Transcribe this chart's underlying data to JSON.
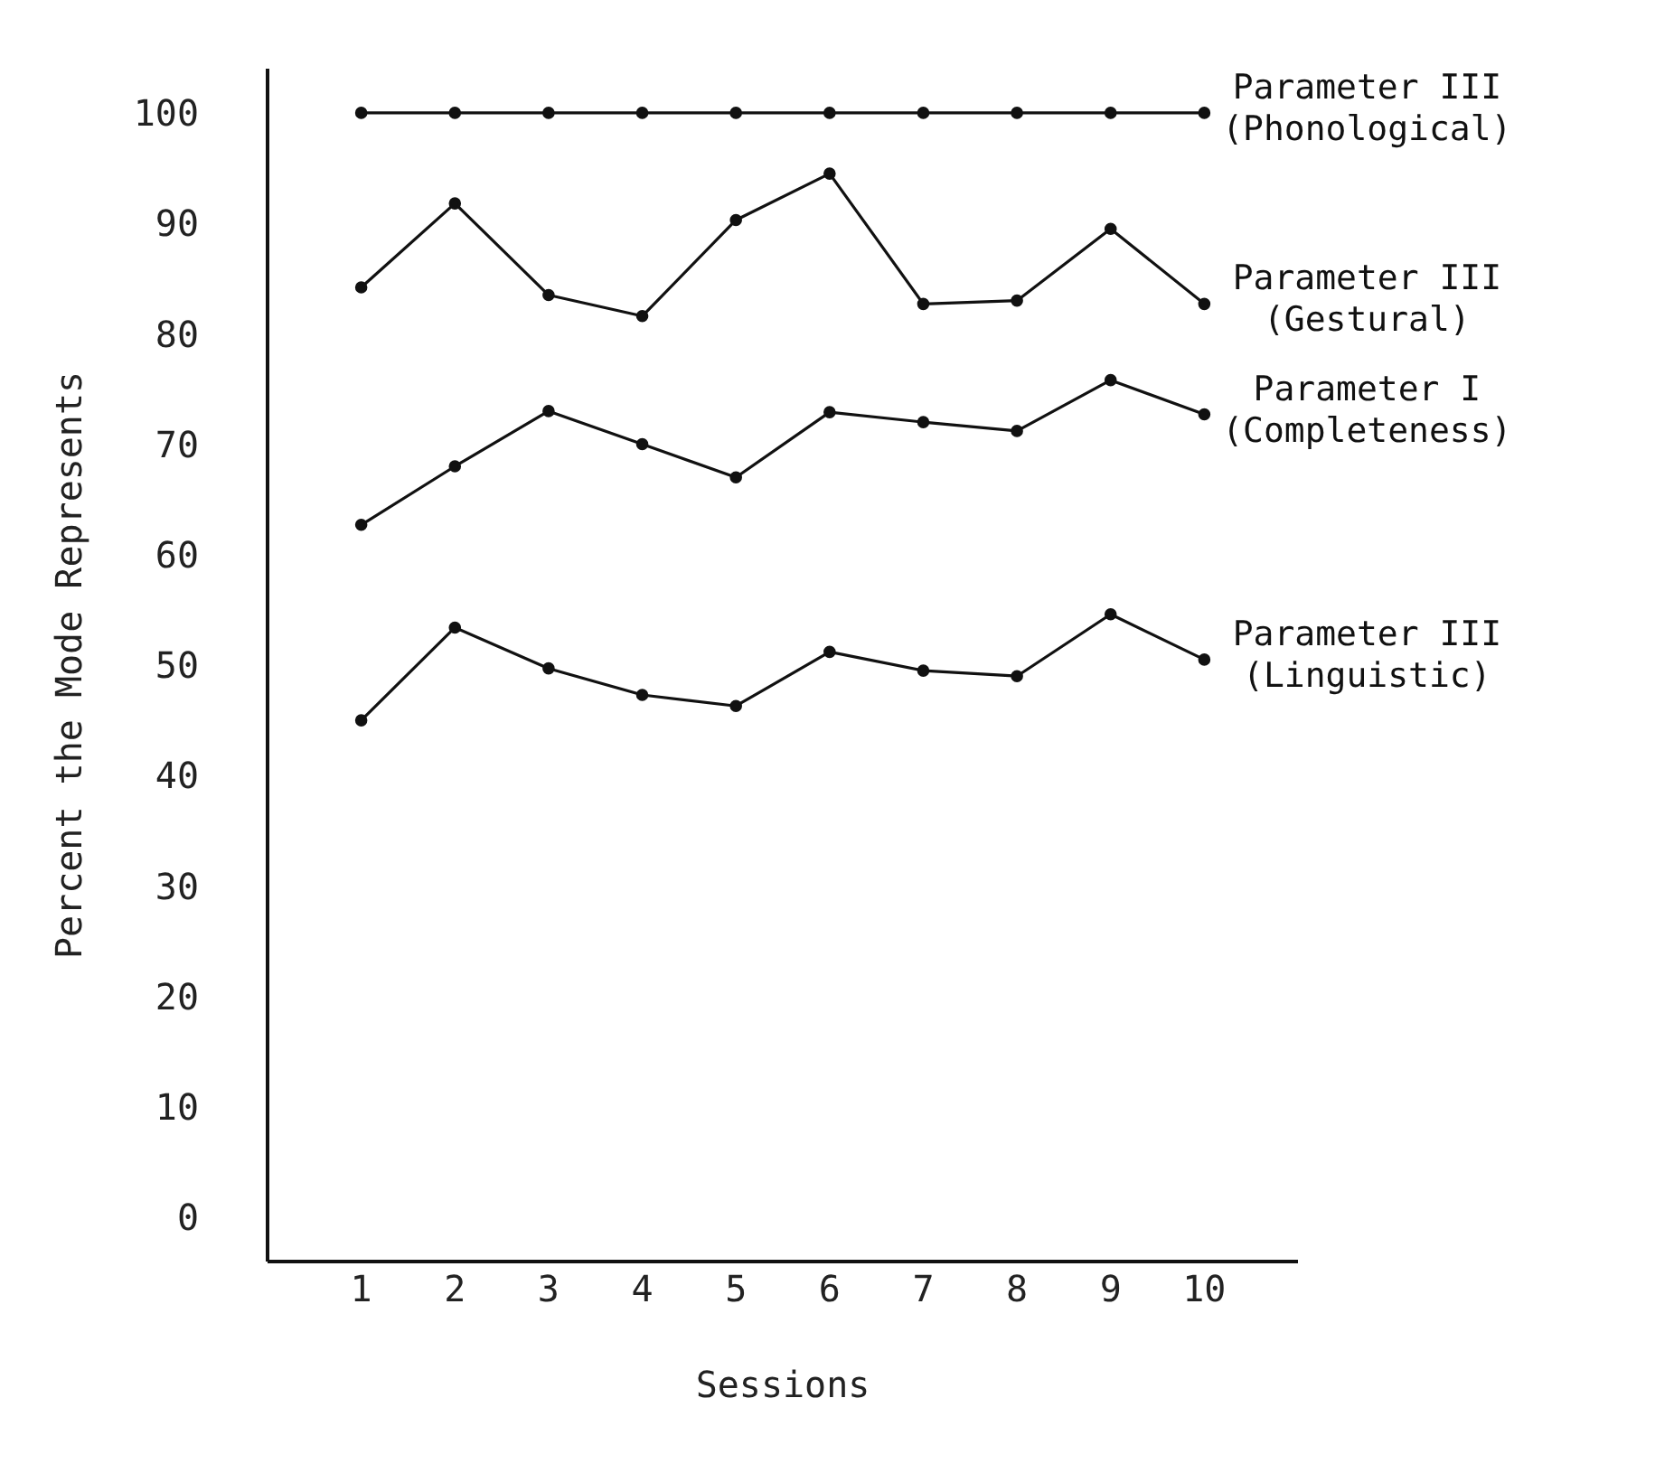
{
  "chart_data": {
    "type": "line",
    "xlabel": "Sessions",
    "ylabel": "Percent the Mode Represents",
    "x": [
      1,
      2,
      3,
      4,
      5,
      6,
      7,
      8,
      9,
      10
    ],
    "xlim": [
      0,
      11
    ],
    "xticks": [
      1,
      2,
      3,
      4,
      5,
      6,
      7,
      8,
      9,
      10
    ],
    "ylim": [
      -4,
      104
    ],
    "yticks": [
      0,
      10,
      20,
      30,
      40,
      50,
      60,
      70,
      80,
      90,
      100
    ],
    "marker": "circle",
    "line_style": "solid",
    "grid": false,
    "legend": false,
    "series": [
      {
        "name": "Parameter III (Phonological)",
        "color": "#111111",
        "values": [
          100,
          100,
          100,
          100,
          100,
          100,
          100,
          100,
          100,
          100
        ]
      },
      {
        "name": "Parameter III (Gestural)",
        "color": "#111111",
        "values": [
          84.2,
          91.8,
          83.5,
          81.6,
          90.3,
          94.5,
          82.7,
          83,
          89.5,
          82.7
        ]
      },
      {
        "name": "Parameter I (Completeness)",
        "color": "#111111",
        "values": [
          62.7,
          68,
          73,
          70,
          67,
          72.9,
          72,
          71.2,
          75.8,
          72.7
        ]
      },
      {
        "name": "Parameter III (Linguistic)",
        "color": "#111111",
        "values": [
          45,
          53.4,
          49.7,
          47.3,
          46.3,
          51.2,
          49.5,
          49,
          54.6,
          50.5
        ]
      }
    ]
  }
}
